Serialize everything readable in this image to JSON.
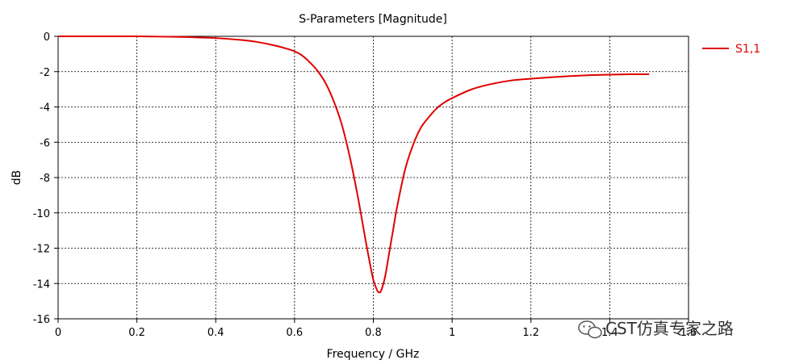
{
  "chart_data": {
    "type": "line",
    "title": "S-Parameters [Magnitude]",
    "xlabel": "Frequency / GHz",
    "ylabel": "dB",
    "xlim": [
      0,
      1.6
    ],
    "ylim": [
      -16,
      0
    ],
    "x_ticks": [
      0,
      0.2,
      0.4,
      0.6,
      0.8,
      1,
      1.2,
      1.4,
      1.6
    ],
    "x_tick_labels": [
      "0",
      "0.2",
      "0.4",
      "0.6",
      "0.8",
      "1",
      "1.2",
      "1.4",
      "1.6"
    ],
    "y_ticks": [
      0,
      -2,
      -4,
      -6,
      -8,
      -10,
      -12,
      -14,
      -16
    ],
    "y_tick_labels": [
      "0",
      "-2",
      "-4",
      "-6",
      "-8",
      "-10",
      "-12",
      "-14",
      "-16"
    ],
    "grid": true,
    "legend_position": "top-right",
    "series": [
      {
        "name": "S1,1",
        "color": "#e00000",
        "x": [
          0,
          0.1,
          0.2,
          0.27,
          0.3,
          0.35,
          0.4,
          0.45,
          0.5,
          0.55,
          0.58,
          0.6,
          0.62,
          0.64,
          0.66,
          0.68,
          0.7,
          0.72,
          0.74,
          0.76,
          0.78,
          0.79,
          0.8,
          0.81,
          0.815,
          0.82,
          0.83,
          0.84,
          0.85,
          0.86,
          0.88,
          0.9,
          0.92,
          0.94,
          0.96,
          0.98,
          1.0,
          1.05,
          1.1,
          1.15,
          1.2,
          1.25,
          1.3,
          1.35,
          1.4,
          1.45,
          1.5
        ],
        "y": [
          0,
          0,
          0,
          -0.02,
          -0.03,
          -0.06,
          -0.1,
          -0.18,
          -0.3,
          -0.52,
          -0.7,
          -0.85,
          -1.1,
          -1.5,
          -2.0,
          -2.7,
          -3.7,
          -5.0,
          -6.8,
          -9.0,
          -11.5,
          -12.7,
          -13.8,
          -14.4,
          -14.5,
          -14.4,
          -13.6,
          -12.3,
          -11.0,
          -9.7,
          -7.6,
          -6.2,
          -5.2,
          -4.6,
          -4.1,
          -3.75,
          -3.5,
          -3.0,
          -2.7,
          -2.5,
          -2.4,
          -2.32,
          -2.25,
          -2.2,
          -2.17,
          -2.15,
          -2.15
        ]
      }
    ]
  },
  "watermark": "CST仿真专家之路"
}
